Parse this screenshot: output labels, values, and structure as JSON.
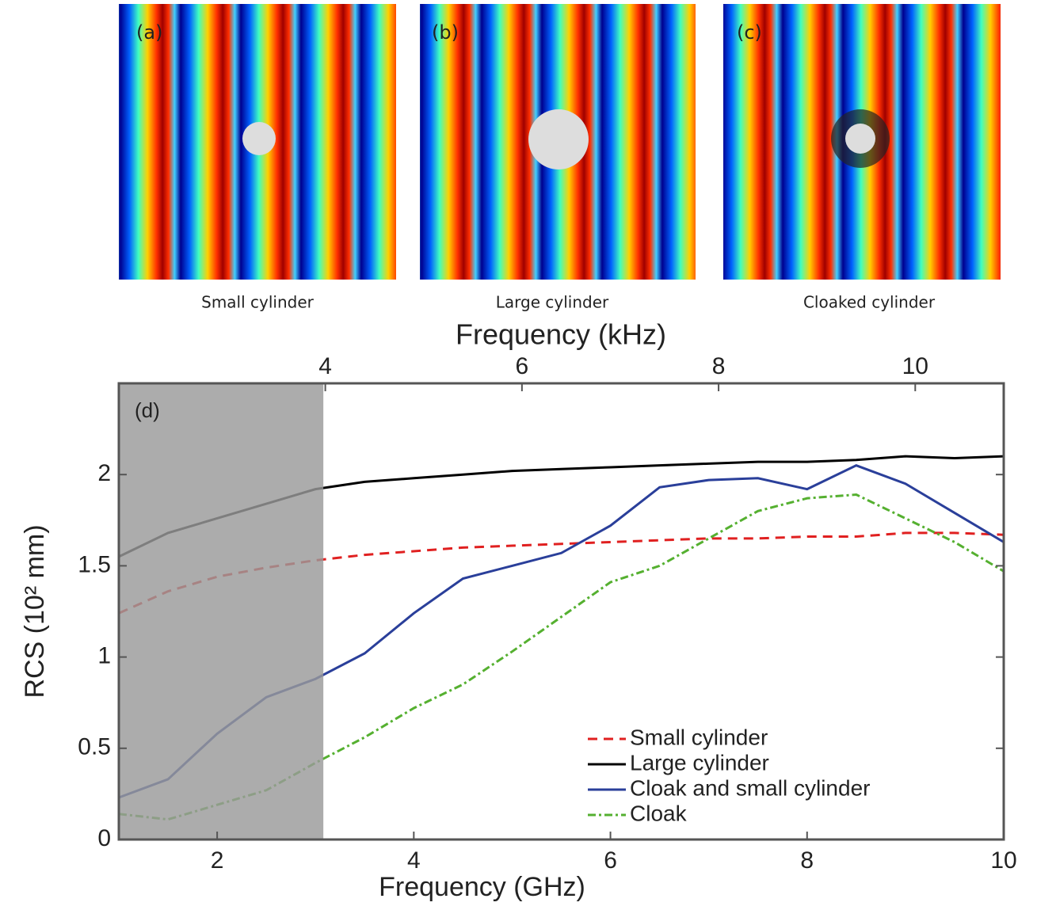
{
  "panels": [
    {
      "label": "(a)",
      "caption": "Small cylinder"
    },
    {
      "label": "(b)",
      "caption": "Large cylinder"
    },
    {
      "label": "(c)",
      "caption": "Cloaked cylinder"
    }
  ],
  "chart_data": {
    "type": "line",
    "panel_label": "(d)",
    "x_label": "Frequency (GHz)",
    "x2_label": "Frequency (kHz)",
    "y_label": "RCS (10² mm)",
    "xlim": [
      1,
      10
    ],
    "xticks": [
      2,
      4,
      6,
      8,
      10
    ],
    "x2lim": [
      1.9,
      10.9
    ],
    "x2ticks": [
      4,
      6,
      8,
      10
    ],
    "ylim": [
      0,
      2.5
    ],
    "yticks": [
      0,
      0.5,
      1,
      1.5,
      2
    ],
    "shaded_xlim": [
      1,
      3.08
    ],
    "legend": "lower right",
    "x": [
      1,
      1.5,
      2,
      2.5,
      3,
      3.5,
      4,
      4.5,
      5,
      5.5,
      6,
      6.5,
      7,
      7.5,
      8,
      8.5,
      9,
      9.5,
      10
    ],
    "series": [
      {
        "name": "Small cylinder",
        "color": "#e02020",
        "dash": "12,8",
        "values": [
          1.24,
          1.36,
          1.44,
          1.49,
          1.53,
          1.56,
          1.58,
          1.6,
          1.61,
          1.62,
          1.63,
          1.64,
          1.65,
          1.65,
          1.66,
          1.66,
          1.68,
          1.68,
          1.67
        ]
      },
      {
        "name": "Large cylinder",
        "color": "#000000",
        "dash": "none",
        "values": [
          1.55,
          1.68,
          1.76,
          1.84,
          1.92,
          1.96,
          1.98,
          2.0,
          2.02,
          2.03,
          2.04,
          2.05,
          2.06,
          2.07,
          2.07,
          2.08,
          2.1,
          2.09,
          2.1
        ]
      },
      {
        "name": "Cloak and small cylinder",
        "color": "#2a3f9a",
        "dash": "none",
        "values": [
          0.23,
          0.33,
          0.58,
          0.78,
          0.88,
          1.02,
          1.24,
          1.43,
          1.5,
          1.57,
          1.72,
          1.93,
          1.97,
          1.98,
          1.92,
          2.05,
          1.95,
          1.79,
          1.63
        ]
      },
      {
        "name": "Cloak",
        "color": "#55b030",
        "dash": "10,4,3,4",
        "values": [
          0.14,
          0.11,
          0.19,
          0.27,
          0.42,
          0.56,
          0.72,
          0.85,
          1.03,
          1.22,
          1.41,
          1.5,
          1.65,
          1.8,
          1.87,
          1.89,
          1.76,
          1.63,
          1.47
        ]
      }
    ]
  }
}
